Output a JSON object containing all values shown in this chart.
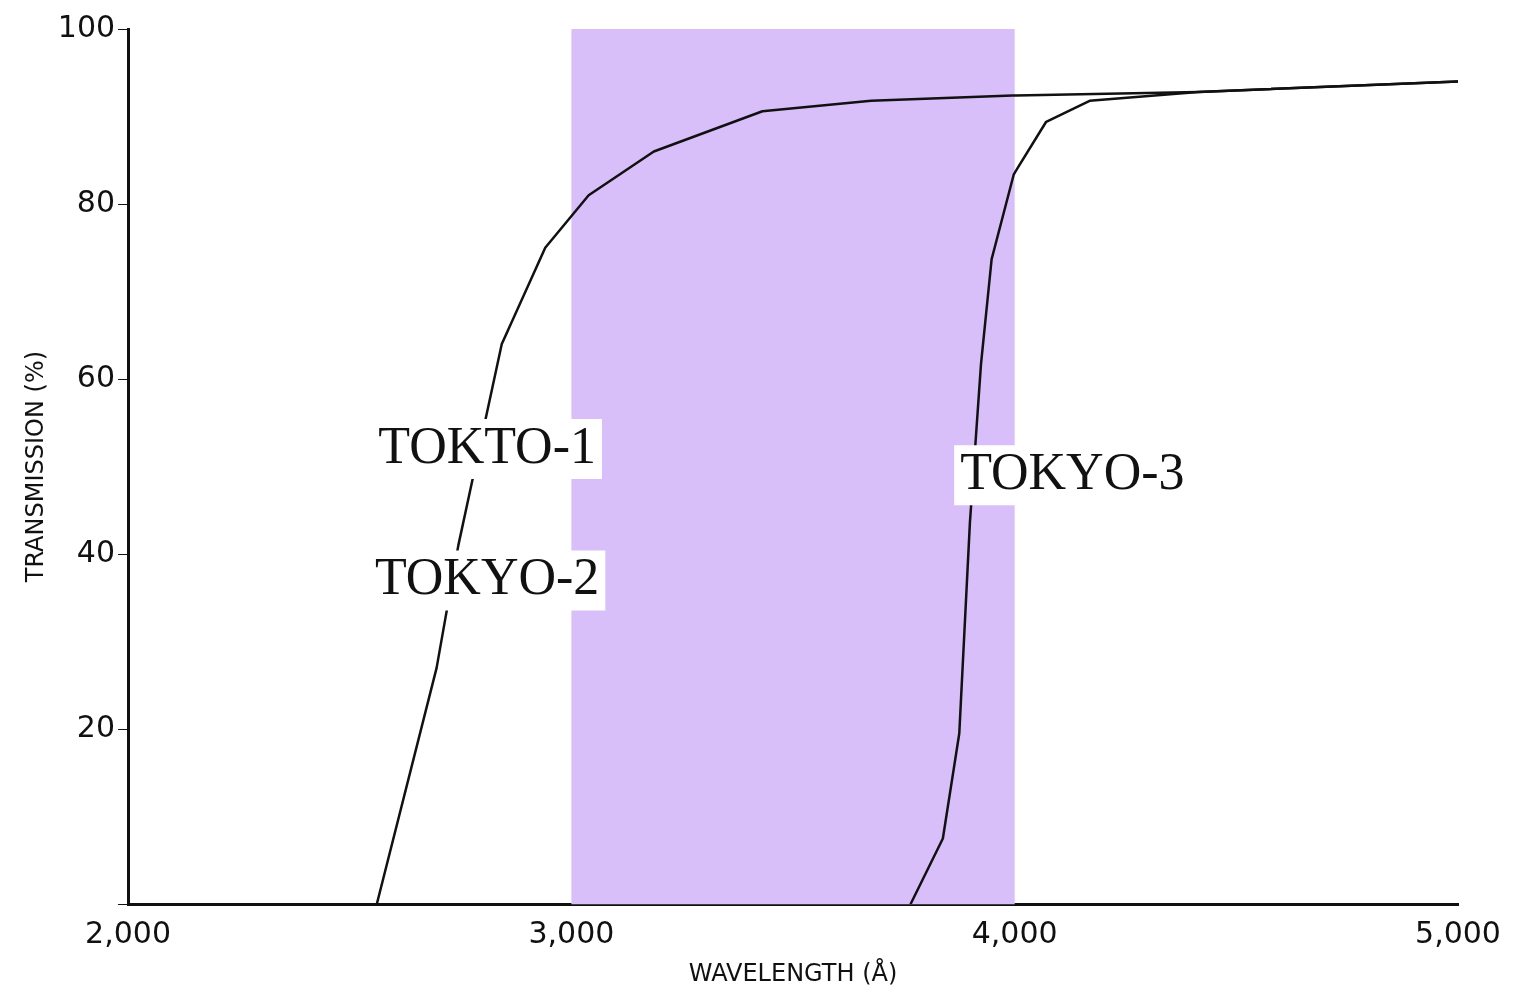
{
  "chart_data": {
    "type": "line",
    "xlabel": "WAVELENGTH (Å)",
    "ylabel": "TRANSMISSION (%)",
    "xlim": [
      2000,
      5000
    ],
    "xticks": [
      {
        "value": 2000,
        "label": "2,000"
      },
      {
        "value": 3000,
        "label": "3,000"
      },
      {
        "value": 4000,
        "label": "4,000"
      },
      {
        "value": 5000,
        "label": "5,000"
      }
    ],
    "ylim": [
      0,
      100
    ],
    "yticks": [
      {
        "value": 0,
        "label": null
      },
      20,
      40,
      60,
      80,
      100
    ],
    "grid": false,
    "legend": false,
    "marker": "none",
    "line_style": "solid",
    "bands": [
      {
        "axis": "x",
        "from": 3000,
        "to": 4000,
        "color": "#d9bff9"
      }
    ],
    "series": [
      {
        "color": "#111111",
        "x": [
          2561,
          2696,
          2745,
          2843,
          2941,
          3039,
          3186,
          3431,
          3676,
          3995,
          4414,
          5000
        ],
        "values": [
          0,
          27,
          41,
          64,
          75,
          81,
          86,
          90.6,
          91.8,
          92.4,
          92.8,
          94
        ]
      },
      {
        "color": "#111111",
        "x": [
          3765,
          3838,
          3875,
          3899,
          3924,
          3948,
          3998,
          4071,
          4169,
          4414,
          5000
        ],
        "values": [
          0,
          7.5,
          19.5,
          43.6,
          61.7,
          73.7,
          83.4,
          89.4,
          91.8,
          92.8,
          94
        ]
      }
    ],
    "annotations": [
      "TOKTO-1",
      "TOKYO-2",
      "TOKYO-3"
    ]
  }
}
